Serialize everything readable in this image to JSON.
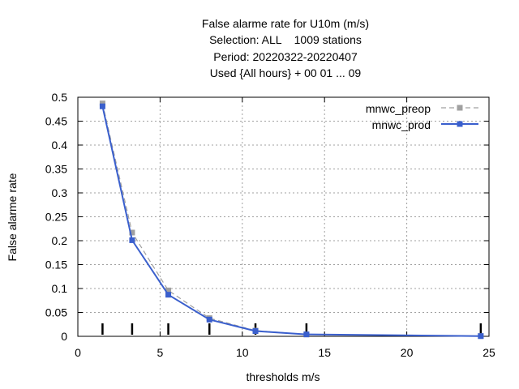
{
  "chart_data": {
    "type": "line",
    "title_lines": [
      "False alarme rate  for U10m (m/s)",
      "Selection: ALL    1009 stations",
      "Period: 20220322-20220407",
      "Used {All hours} + 00 01 ... 09"
    ],
    "xlabel": "thresholds m/s",
    "ylabel": "False alarme rate",
    "xlim": [
      0,
      25
    ],
    "ylim": [
      0,
      0.5
    ],
    "x_ticks": [
      0,
      5,
      10,
      15,
      20,
      25
    ],
    "y_ticks": [
      0,
      0.05,
      0.1,
      0.15,
      0.2,
      0.25,
      0.3,
      0.35,
      0.4,
      0.45,
      0.5
    ],
    "x_tick_labels": [
      "0",
      "5",
      "10",
      "15",
      "20",
      "25"
    ],
    "y_tick_labels": [
      "0",
      "0.05",
      "0.1",
      "0.15",
      "0.2",
      "0.25",
      "0.3",
      "0.35",
      "0.4",
      "0.45",
      "0.5"
    ],
    "grid": true,
    "legend_position": "top-right",
    "threshold_marks": [
      1.5,
      3.3,
      5.5,
      8.0,
      10.8,
      13.9,
      24.5
    ],
    "x": [
      1.5,
      3.3,
      5.5,
      8.0,
      10.8,
      13.9,
      24.5
    ],
    "series": [
      {
        "name": "mnwc_preop",
        "color": "#a0a0a0",
        "style": "dashed",
        "values": [
          0.487,
          0.217,
          0.096,
          0.038,
          0.012,
          0.004,
          0.0005
        ]
      },
      {
        "name": "mnwc_prod",
        "color": "#3a5fcd",
        "style": "solid",
        "values": [
          0.481,
          0.201,
          0.087,
          0.035,
          0.011,
          0.004,
          0.0005
        ]
      }
    ]
  }
}
